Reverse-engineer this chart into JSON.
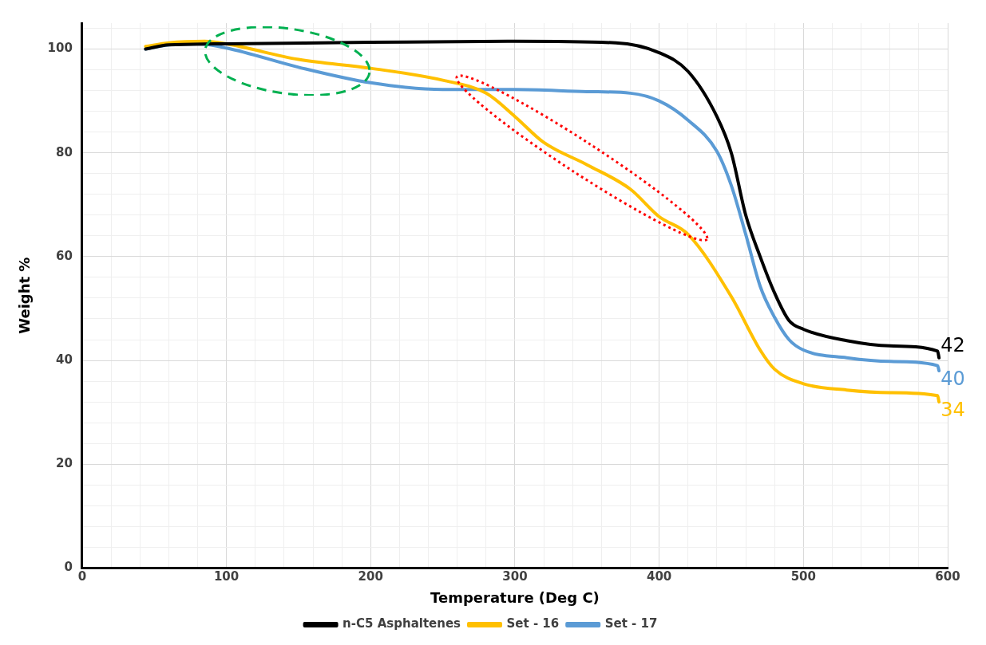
{
  "chart_data": {
    "type": "line",
    "xlabel": "Temperature (Deg C)",
    "ylabel": "Weight %",
    "xlim": [
      0,
      600
    ],
    "ylim": [
      0,
      105
    ],
    "xticks": [
      0,
      {
        "value": 20,
        "label": null
      },
      {
        "value": 40,
        "label": null
      },
      {
        "value": 60,
        "label": null
      },
      {
        "value": 80,
        "label": null
      },
      100,
      {
        "value": 120,
        "label": null
      },
      {
        "value": 140,
        "label": null
      },
      {
        "value": 160,
        "label": null
      },
      {
        "value": 180,
        "label": null
      },
      200,
      {
        "value": 220,
        "label": null
      },
      {
        "value": 240,
        "label": null
      },
      {
        "value": 260,
        "label": null
      },
      {
        "value": 280,
        "label": null
      },
      300,
      {
        "value": 320,
        "label": null
      },
      {
        "value": 340,
        "label": null
      },
      {
        "value": 360,
        "label": null
      },
      {
        "value": 380,
        "label": null
      },
      400,
      {
        "value": 420,
        "label": null
      },
      {
        "value": 440,
        "label": null
      },
      {
        "value": 460,
        "label": null
      },
      {
        "value": 480,
        "label": null
      },
      500,
      {
        "value": 520,
        "label": null
      },
      {
        "value": 540,
        "label": null
      },
      {
        "value": 560,
        "label": null
      },
      {
        "value": 580,
        "label": null
      },
      600
    ],
    "yticks": [
      0,
      {
        "value": 4,
        "label": null
      },
      {
        "value": 8,
        "label": null
      },
      {
        "value": 12,
        "label": null
      },
      {
        "value": 16,
        "label": null
      },
      20,
      {
        "value": 24,
        "label": null
      },
      {
        "value": 28,
        "label": null
      },
      {
        "value": 32,
        "label": null
      },
      {
        "value": 36,
        "label": null
      },
      40,
      {
        "value": 44,
        "label": null
      },
      {
        "value": 48,
        "label": null
      },
      {
        "value": 52,
        "label": null
      },
      {
        "value": 56,
        "label": null
      },
      60,
      {
        "value": 64,
        "label": null
      },
      {
        "value": 68,
        "label": null
      },
      {
        "value": 72,
        "label": null
      },
      {
        "value": 76,
        "label": null
      },
      80,
      {
        "value": 84,
        "label": null
      },
      {
        "value": 88,
        "label": null
      },
      {
        "value": 92,
        "label": null
      },
      {
        "value": 96,
        "label": null
      },
      100,
      {
        "value": 104,
        "label": null
      }
    ],
    "grid": true,
    "legend": "bottom",
    "marker": "none",
    "line_style": "solid",
    "series": [
      {
        "name": "n-C5 Asphaltenes",
        "color": "#000000",
        "x": [
          44,
          60,
          100,
          200,
          300,
          370,
          400,
          420,
          440,
          450,
          460,
          470,
          480,
          490,
          500,
          530,
          560,
          593,
          594
        ],
        "values": [
          100,
          100.8,
          101,
          101.3,
          101.5,
          101.2,
          99.3,
          95.7,
          87,
          80,
          68,
          60,
          53,
          47.7,
          46,
          43.8,
          42.8,
          41.8,
          40.5
        ]
      },
      {
        "name": "Set - 16",
        "color": "#ffc000",
        "x": [
          44,
          60,
          85,
          100,
          150,
          200,
          250,
          280,
          300,
          320,
          350,
          380,
          400,
          420,
          450,
          470,
          480,
          500,
          530,
          560,
          593,
          594
        ],
        "values": [
          100.5,
          101.2,
          101.5,
          101,
          98,
          96.3,
          94,
          91.5,
          87,
          82,
          77.7,
          73,
          67.7,
          64.3,
          52.3,
          42,
          38.3,
          35.5,
          34.3,
          33.8,
          33.2,
          32
        ]
      },
      {
        "name": "Set - 17",
        "color": "#5b9bd5",
        "x": [
          44,
          60,
          80,
          100,
          150,
          200,
          250,
          300,
          350,
          380,
          400,
          420,
          440,
          450,
          460,
          470,
          480,
          490,
          500,
          530,
          560,
          593,
          594
        ],
        "values": [
          100,
          100.8,
          101,
          100.2,
          96.5,
          93.5,
          92.2,
          92.2,
          91.8,
          91.5,
          90,
          86.3,
          80.3,
          73.7,
          64.3,
          54.3,
          48.3,
          44,
          42,
          40.5,
          39.8,
          39,
          38
        ]
      }
    ],
    "annotations": [
      "42",
      "34",
      "40"
    ]
  }
}
